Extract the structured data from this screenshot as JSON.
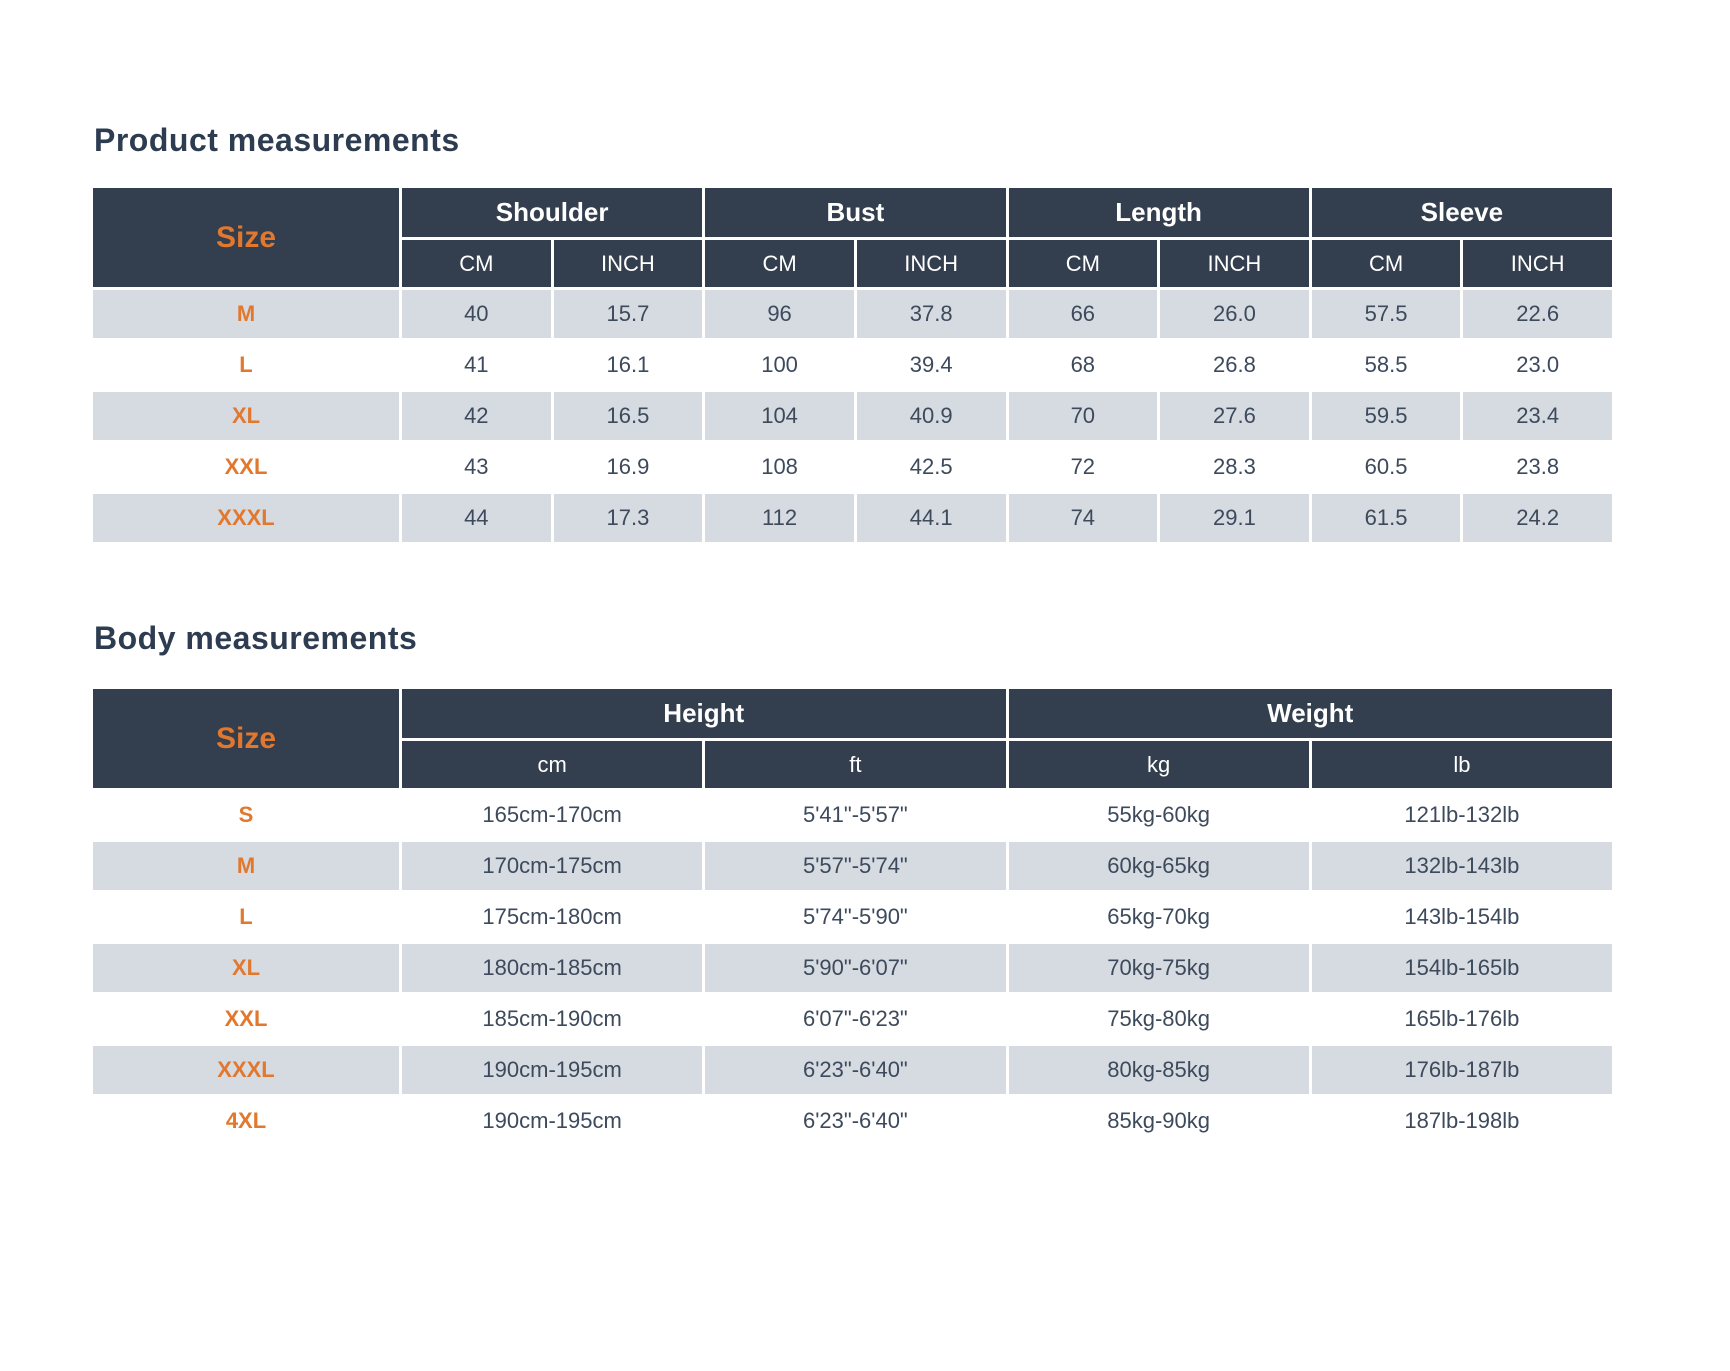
{
  "colors": {
    "header_bg": "#333e4e",
    "stripe_bg": "#d6dae1",
    "accent_orange": "#e2782d",
    "title_text": "#2d3c50",
    "value_text": "#3d4a5c",
    "grid_line": "#ffffff"
  },
  "product_table": {
    "title": "Product measurements",
    "size_header": "Size",
    "groups": [
      "Shoulder",
      "Bust",
      "Length",
      "Sleeve"
    ],
    "unit_headers": [
      "CM",
      "INCH",
      "CM",
      "INCH",
      "CM",
      "INCH",
      "CM",
      "INCH"
    ],
    "rows": [
      {
        "size": "M",
        "values": [
          "40",
          "15.7",
          "96",
          "37.8",
          "66",
          "26.0",
          "57.5",
          "22.6"
        ]
      },
      {
        "size": "L",
        "values": [
          "41",
          "16.1",
          "100",
          "39.4",
          "68",
          "26.8",
          "58.5",
          "23.0"
        ]
      },
      {
        "size": "XL",
        "values": [
          "42",
          "16.5",
          "104",
          "40.9",
          "70",
          "27.6",
          "59.5",
          "23.4"
        ]
      },
      {
        "size": "XXL",
        "values": [
          "43",
          "16.9",
          "108",
          "42.5",
          "72",
          "28.3",
          "60.5",
          "23.8"
        ]
      },
      {
        "size": "XXXL",
        "values": [
          "44",
          "17.3",
          "112",
          "44.1",
          "74",
          "29.1",
          "61.5",
          "24.2"
        ]
      }
    ]
  },
  "body_table": {
    "title": "Body measurements",
    "size_header": "Size",
    "groups": [
      "Height",
      "Weight"
    ],
    "unit_headers": [
      "cm",
      "ft",
      "kg",
      "lb"
    ],
    "rows": [
      {
        "size": "S",
        "values": [
          "165cm-170cm",
          "5'41\"-5'57\"",
          "55kg-60kg",
          "121lb-132lb"
        ]
      },
      {
        "size": "M",
        "values": [
          "170cm-175cm",
          "5'57\"-5'74\"",
          "60kg-65kg",
          "132lb-143lb"
        ]
      },
      {
        "size": "L",
        "values": [
          "175cm-180cm",
          "5'74\"-5'90\"",
          "65kg-70kg",
          "143lb-154lb"
        ]
      },
      {
        "size": "XL",
        "values": [
          "180cm-185cm",
          "5'90\"-6'07\"",
          "70kg-75kg",
          "154lb-165lb"
        ]
      },
      {
        "size": "XXL",
        "values": [
          "185cm-190cm",
          "6'07\"-6'23\"",
          "75kg-80kg",
          "165lb-176lb"
        ]
      },
      {
        "size": "XXXL",
        "values": [
          "190cm-195cm",
          "6'23\"-6'40\"",
          "80kg-85kg",
          "176lb-187lb"
        ]
      },
      {
        "size": "4XL",
        "values": [
          "190cm-195cm",
          "6'23\"-6'40\"",
          "85kg-90kg",
          "187lb-198lb"
        ]
      }
    ]
  }
}
